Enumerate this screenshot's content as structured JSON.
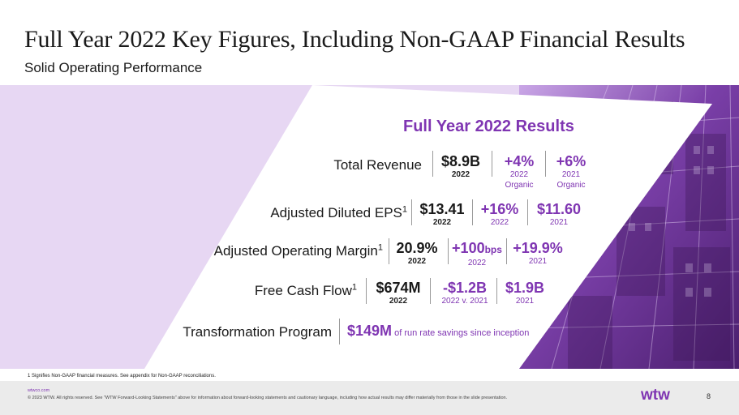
{
  "header": {
    "title": "Full Year 2022 Key Figures, Including Non-GAAP Financial Results",
    "subtitle": "Solid Operating Performance"
  },
  "panel": {
    "title": "Full Year 2022 Results"
  },
  "rows": {
    "revenue": {
      "label": "Total Revenue",
      "m1_value": "$8.9B",
      "m1_cap": "2022",
      "m2_value": "+4%",
      "m2_cap1": "2022",
      "m2_cap2": "Organic",
      "m3_value": "+6%",
      "m3_cap1": "2021",
      "m3_cap2": "Organic"
    },
    "eps": {
      "label": "Adjusted Diluted EPS",
      "sup": "1",
      "m1_value": "$13.41",
      "m1_cap": "2022",
      "m2_value": "+16%",
      "m2_cap": "2022",
      "m3_value": "$11.60",
      "m3_cap": "2021"
    },
    "margin": {
      "label": "Adjusted Operating Margin",
      "sup": "1",
      "m1_value": "20.9%",
      "m1_cap": "2022",
      "m2_value": "+100",
      "m2_unit": "bps",
      "m2_cap": "2022",
      "m3_value": "+19.9%",
      "m3_cap": "2021"
    },
    "fcf": {
      "label": "Free Cash Flow",
      "sup": "1",
      "m1_value": "$674M",
      "m1_cap": "2022",
      "m2_value": "-$1.2B",
      "m2_cap": "2022 v. 2021",
      "m3_value": "$1.9B",
      "m3_cap": "2021"
    },
    "program": {
      "label": "Transformation Program",
      "value": "$149M",
      "text": " of run rate savings since inception"
    }
  },
  "footnote": "1 Signifies Non-GAAP financial measures. See appendix for Non-GAAP reconciliations.",
  "footer": {
    "site": "wtwco.com",
    "copyright": "© 2023 WTW. All rights reserved. See \"WTW Forward-Looking Statements\" above for information about forward-looking statements and cautionary language, including how actual results may differ materially from those in the slide presentation.",
    "logo_text": "wtw",
    "page": "8"
  },
  "colors": {
    "accent": "#7f35b2",
    "band": "#e7d7f3",
    "photo": "#5e2d83"
  }
}
